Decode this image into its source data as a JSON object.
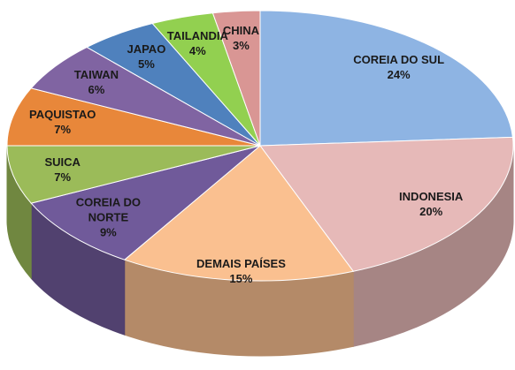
{
  "chart_data": {
    "type": "pie3d",
    "categories": [
      "COREIA DO SUL",
      "INDONESIA",
      "DEMAIS PAÍSES",
      "COREIA DO NORTE",
      "SUICA",
      "PAQUISTAO",
      "TAIWAN",
      "JAPAO",
      "TAILANDIA",
      "CHINA"
    ],
    "values": [
      24,
      20,
      15,
      9,
      7,
      7,
      6,
      5,
      4,
      3
    ],
    "value_labels": [
      "24%",
      "20%",
      "15%",
      "9%",
      "7%",
      "7%",
      "6%",
      "5%",
      "4%",
      "3%"
    ],
    "colors": [
      "#8EB4E3",
      "#E6B9B8",
      "#FAC090",
      "#705A9A",
      "#9BBB59",
      "#E8873A",
      "#8064A2",
      "#4F81BD",
      "#92D050",
      "#D99694"
    ]
  }
}
